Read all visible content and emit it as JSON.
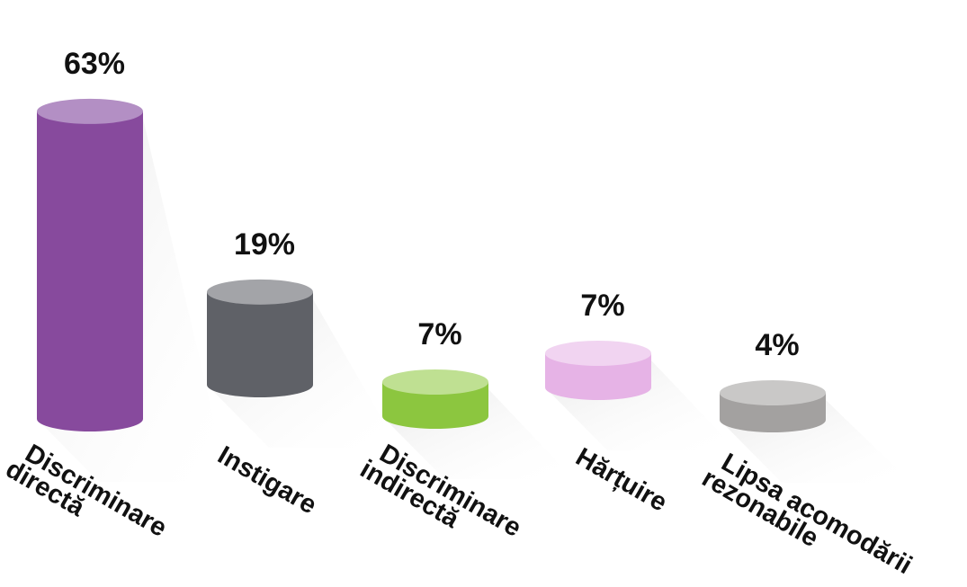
{
  "chart_data": {
    "type": "bar",
    "style": "3d-cylinder",
    "categories": [
      [
        "Discriminare",
        "directă"
      ],
      [
        "Instigare"
      ],
      [
        "Discriminare",
        "indirectă"
      ],
      [
        "Hărțuire"
      ],
      [
        "Lipsa acomodării",
        "rezonabile"
      ]
    ],
    "values": [
      63,
      19,
      7,
      7,
      4
    ],
    "value_labels": [
      "63%",
      "19%",
      "7%",
      "7%",
      "4%"
    ],
    "colors": [
      {
        "body": "#874a9d",
        "top": "#b38fc4"
      },
      {
        "body": "#5f6167",
        "top": "#a3a4a8"
      },
      {
        "body": "#8cc63f",
        "top": "#bfe092"
      },
      {
        "body": "#e6b3e6",
        "top": "#f1d4f1"
      },
      {
        "body": "#a3a1a0",
        "top": "#c9c8c7"
      }
    ],
    "title": "",
    "xlabel": "",
    "ylabel": "",
    "grid": false,
    "legend": "none"
  }
}
